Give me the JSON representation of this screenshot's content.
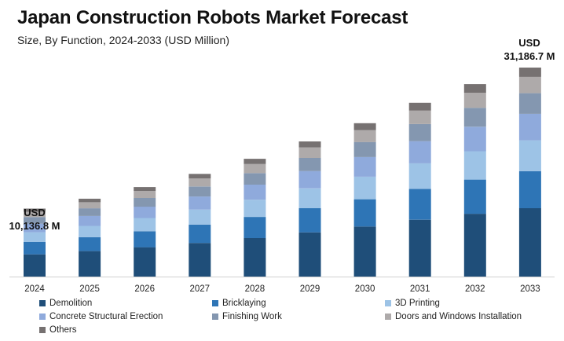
{
  "header": {
    "title": "Japan Construction Robots Market Forecast",
    "subtitle": "Size, By Function, 2024-2033 (USD Million)"
  },
  "annotations": {
    "start_currency": "USD",
    "start_value": "10,136.8 M",
    "end_currency": "USD",
    "end_value": "31,186.7 M"
  },
  "colors": {
    "Demolition": "#1f4e79",
    "Bricklaying": "#2e75b6",
    "3D Printing": "#9dc3e6",
    "Concrete Structural Erection": "#8faadc",
    "Finishing Work": "#8497b0",
    "Doors and Windows Installation": "#aeaaaa",
    "Others": "#767171"
  },
  "chart_data": {
    "type": "bar",
    "stacked": true,
    "title": "Japan Construction Robots Market Forecast",
    "subtitle": "Size, By Function, 2024-2033 (USD Million)",
    "categories": [
      "2024",
      "2025",
      "2026",
      "2027",
      "2028",
      "2029",
      "2030",
      "2031",
      "2032",
      "2033"
    ],
    "totals": [
      10136.8,
      11620,
      13350,
      15320,
      17580,
      20170,
      22890,
      25940,
      28710,
      31186.7
    ],
    "series": [
      {
        "name": "Demolition",
        "values": [
          3320,
          3800,
          4380,
          5020,
          5750,
          6600,
          7470,
          8480,
          9370,
          10200
        ]
      },
      {
        "name": "Bricklaying",
        "values": [
          1840,
          2080,
          2390,
          2740,
          3150,
          3600,
          4070,
          4600,
          5100,
          5530
        ]
      },
      {
        "name": "3D Printing",
        "values": [
          1450,
          1680,
          1960,
          2240,
          2570,
          2960,
          3360,
          3810,
          4230,
          4600
        ]
      },
      {
        "name": "Concrete Structural Erection",
        "values": [
          1280,
          1480,
          1700,
          1950,
          2250,
          2570,
          2930,
          3310,
          3650,
          3960
        ]
      },
      {
        "name": "Finishing Work",
        "values": [
          1000,
          1150,
          1300,
          1490,
          1720,
          1980,
          2250,
          2550,
          2830,
          3080
        ]
      },
      {
        "name": "Doors and Windows Installation",
        "values": [
          780,
          900,
          1050,
          1210,
          1380,
          1580,
          1790,
          2030,
          2240,
          2420
        ]
      },
      {
        "name": "Others",
        "values": [
          466.8,
          530,
          570,
          670,
          760,
          880,
          1020,
          1160,
          1290,
          1396.7
        ]
      }
    ],
    "ylim": [
      0,
      32500
    ],
    "grid": false,
    "legend": "bottom"
  }
}
